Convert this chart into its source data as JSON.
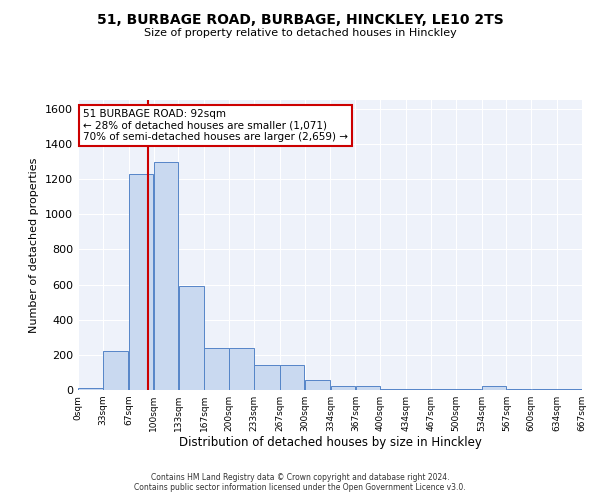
{
  "title_line1": "51, BURBAGE ROAD, BURBAGE, HINCKLEY, LE10 2TS",
  "title_line2": "Size of property relative to detached houses in Hinckley",
  "xlabel": "Distribution of detached houses by size in Hinckley",
  "ylabel": "Number of detached properties",
  "footer_line1": "Contains HM Land Registry data © Crown copyright and database right 2024.",
  "footer_line2": "Contains public sector information licensed under the Open Government Licence v3.0.",
  "annotation_line1": "51 BURBAGE ROAD: 92sqm",
  "annotation_line2": "← 28% of detached houses are smaller (1,071)",
  "annotation_line3": "70% of semi-detached houses are larger (2,659) →",
  "property_size": 92,
  "bar_color": "#c9d9f0",
  "bar_edge_color": "#5585c8",
  "background_color": "#eef2fa",
  "grid_color": "#ffffff",
  "vline_color": "#cc0000",
  "bin_edges": [
    0,
    33,
    67,
    100,
    133,
    167,
    200,
    233,
    267,
    300,
    334,
    367,
    400,
    434,
    467,
    500,
    534,
    567,
    600,
    634,
    667
  ],
  "bar_heights": [
    10,
    220,
    1230,
    1300,
    590,
    240,
    240,
    140,
    140,
    55,
    25,
    20,
    5,
    5,
    5,
    5,
    20,
    5,
    5,
    5
  ],
  "ylim": [
    0,
    1650
  ],
  "xlim": [
    0,
    667
  ],
  "yticks": [
    0,
    200,
    400,
    600,
    800,
    1000,
    1200,
    1400,
    1600
  ],
  "xtick_labels": [
    "0sqm",
    "33sqm",
    "67sqm",
    "100sqm",
    "133sqm",
    "167sqm",
    "200sqm",
    "233sqm",
    "267sqm",
    "300sqm",
    "334sqm",
    "367sqm",
    "400sqm",
    "434sqm",
    "467sqm",
    "500sqm",
    "534sqm",
    "567sqm",
    "600sqm",
    "634sqm",
    "667sqm"
  ]
}
